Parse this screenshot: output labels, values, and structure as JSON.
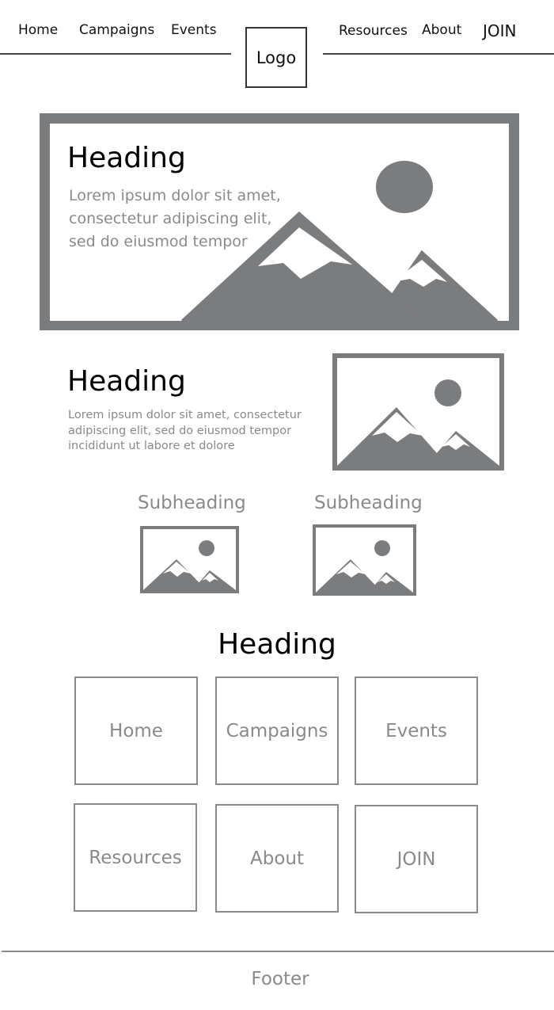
{
  "nav": {
    "links": [
      "Home",
      "Campaigns",
      "Events",
      "Resources",
      "About",
      "JOIN"
    ],
    "logo": "Logo"
  },
  "hero": {
    "heading": "Heading",
    "body": "Lorem ipsum dolor sit amet,\nconsectetur adipiscing elit,\nsed do eiusmod tempor"
  },
  "section2": {
    "heading": "Heading",
    "body": "Lorem ipsum dolor sit amet, consectetur adipiscing elit, sed do eiusmod tempor incididunt ut labore et dolore"
  },
  "subsections": [
    {
      "heading": "Subheading"
    },
    {
      "heading": "Subheading"
    }
  ],
  "grid": {
    "heading": "Heading",
    "tiles": [
      "Home",
      "Campaigns",
      "Events",
      "Resources",
      "About",
      "JOIN"
    ]
  },
  "footer": {
    "text": "Footer"
  },
  "colors": {
    "placeholder_gray": "#7b7c7e",
    "text_gray": "#8a8a8a"
  }
}
